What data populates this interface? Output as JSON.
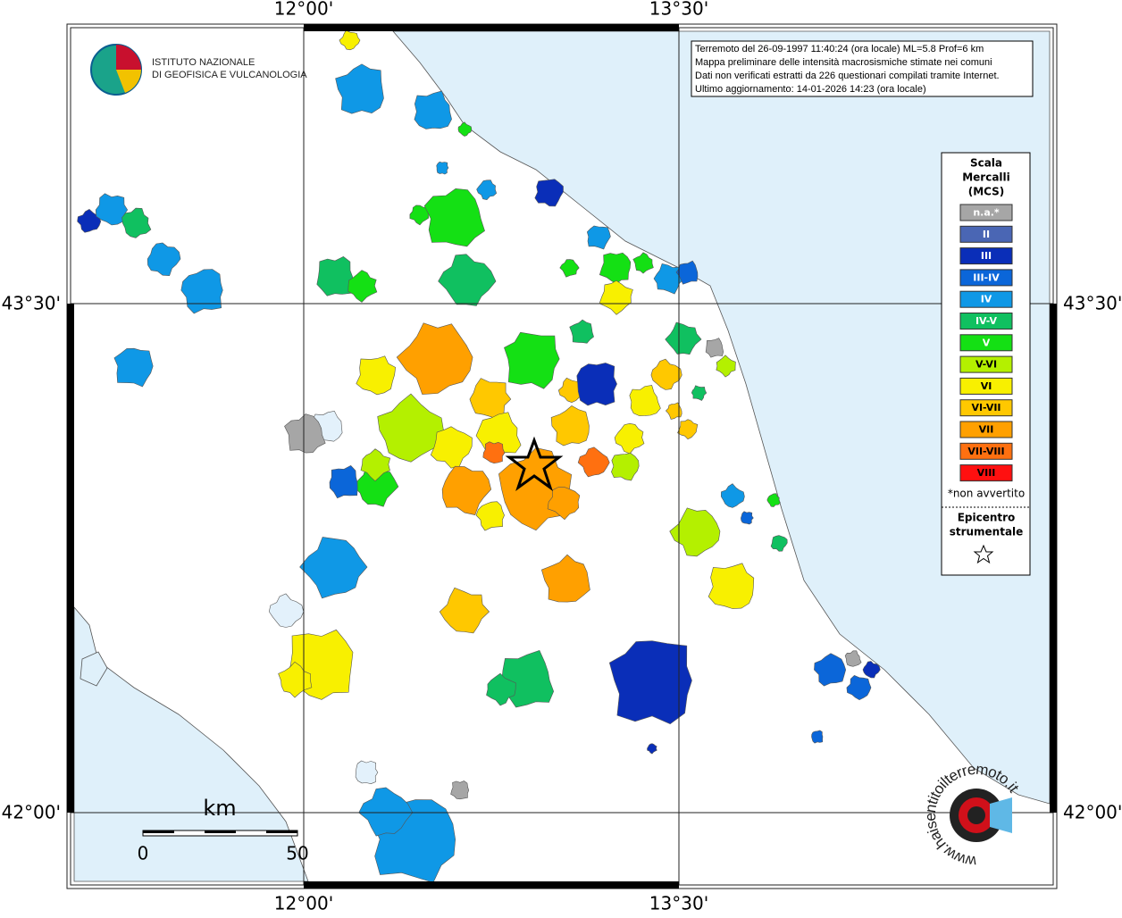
{
  "grid_labels": {
    "lon_top": [
      "12°00'",
      "13°30'"
    ],
    "lon_bottom": [
      "12°00'",
      "13°30'"
    ],
    "lat_left": [
      "43°30'",
      "42°00'"
    ],
    "lat_right": [
      "43°30'",
      "42°00'"
    ]
  },
  "logo": {
    "line1": "ISTITUTO NAZIONALE",
    "line2": "DI GEOFISICA E VULCANOLOGIA"
  },
  "info": {
    "lines": [
      "Terremoto del 26-09-1997 11:40:24 (ora locale) ML=5.8 Prof=6 km",
      "Mappa preliminare delle intensità macrosismiche stimate nei comuni",
      "Dati non verificati estratti da 226 questionari compilati tramite Internet.",
      "Ultimo aggiornamento: 14-01-2026 14:23 (ora locale)"
    ]
  },
  "legend": {
    "title": [
      "Scala",
      "Mercalli",
      "(MCS)"
    ],
    "items": [
      {
        "label": "n.a.*",
        "color": "#a6a6a6"
      },
      {
        "label": "II",
        "color": "#4a66b4"
      },
      {
        "label": "III",
        "color": "#0a2eb8"
      },
      {
        "label": "III-IV",
        "color": "#0b66d9"
      },
      {
        "label": "IV",
        "color": "#0f98e6"
      },
      {
        "label": "IV-V",
        "color": "#10c060"
      },
      {
        "label": "V",
        "color": "#14e014"
      },
      {
        "label": "V-VI",
        "color": "#b4f000"
      },
      {
        "label": "VI",
        "color": "#f8f000"
      },
      {
        "label": "VI-VII",
        "color": "#ffc800"
      },
      {
        "label": "VII",
        "color": "#ffa000"
      },
      {
        "label": "VII-VIII",
        "color": "#ff7010"
      },
      {
        "label": "VIII",
        "color": "#ff1010"
      }
    ],
    "footnote": "*non avvertito",
    "epicentre": [
      "Epicentro",
      "strumentale"
    ]
  },
  "scale_bar": {
    "unit": "km",
    "labels": [
      "0",
      "50"
    ]
  },
  "badge": {
    "text": "www.haisentitoilterremoto.it"
  }
}
